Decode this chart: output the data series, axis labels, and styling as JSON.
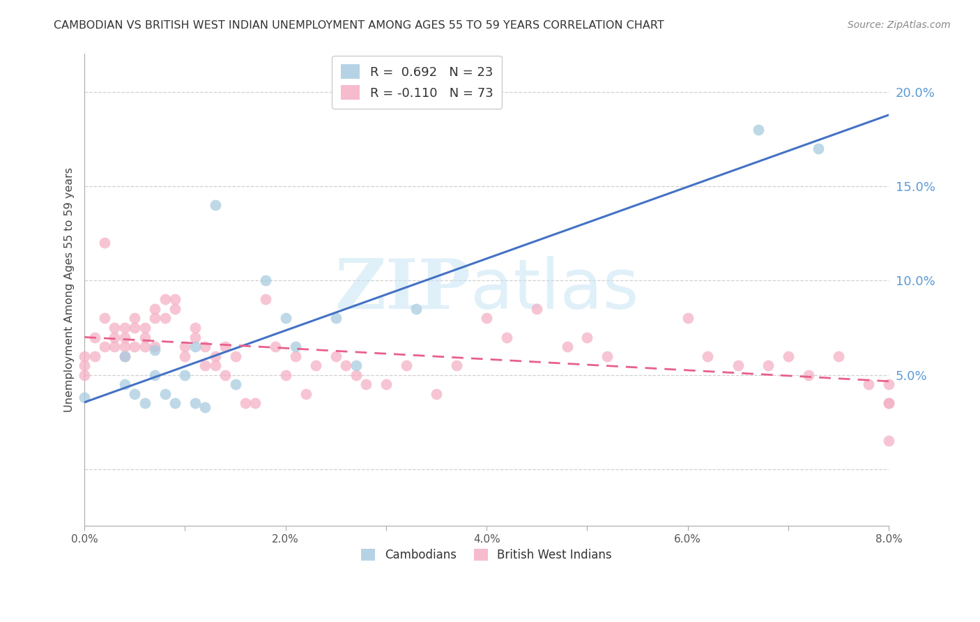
{
  "title": "CAMBODIAN VS BRITISH WEST INDIAN UNEMPLOYMENT AMONG AGES 55 TO 59 YEARS CORRELATION CHART",
  "source": "Source: ZipAtlas.com",
  "ylabel": "Unemployment Among Ages 55 to 59 years",
  "legend_line1_r": "R =  0.692",
  "legend_line1_n": "N = 23",
  "legend_line2_r": "R = -0.110",
  "legend_line2_n": "N = 73",
  "xlim": [
    0.0,
    0.08
  ],
  "ylim": [
    -0.03,
    0.22
  ],
  "yticks": [
    0.0,
    0.05,
    0.1,
    0.15,
    0.2
  ],
  "ytick_labels": [
    "",
    "5.0%",
    "10.0%",
    "15.0%",
    "20.0%"
  ],
  "xticks": [
    0.0,
    0.01,
    0.02,
    0.03,
    0.04,
    0.05,
    0.06,
    0.07,
    0.08
  ],
  "xtick_labels": [
    "0.0%",
    "",
    "2.0%",
    "",
    "4.0%",
    "",
    "6.0%",
    "",
    "8.0%"
  ],
  "blue_scatter": "#a8cce0",
  "pink_scatter": "#f5b0c5",
  "line_blue": "#4472c4",
  "line_pink": "#e8608a",
  "ytick_color": "#5b9bd5",
  "xtick_color": "#555555",
  "grid_color": "#d0d0d0",
  "watermark_color": "#c8e4f5",
  "cambodian_x": [
    0.0,
    0.004,
    0.004,
    0.005,
    0.006,
    0.007,
    0.007,
    0.008,
    0.009,
    0.01,
    0.011,
    0.011,
    0.012,
    0.013,
    0.015,
    0.018,
    0.02,
    0.021,
    0.025,
    0.027,
    0.033,
    0.067,
    0.073
  ],
  "cambodian_y": [
    0.038,
    0.045,
    0.06,
    0.04,
    0.035,
    0.063,
    0.05,
    0.04,
    0.035,
    0.05,
    0.035,
    0.065,
    0.033,
    0.14,
    0.045,
    0.1,
    0.08,
    0.065,
    0.08,
    0.055,
    0.085,
    0.18,
    0.17
  ],
  "bwi_x": [
    0.0,
    0.0,
    0.0,
    0.001,
    0.001,
    0.002,
    0.002,
    0.002,
    0.003,
    0.003,
    0.003,
    0.004,
    0.004,
    0.004,
    0.004,
    0.005,
    0.005,
    0.005,
    0.006,
    0.006,
    0.006,
    0.007,
    0.007,
    0.007,
    0.008,
    0.008,
    0.009,
    0.009,
    0.01,
    0.01,
    0.011,
    0.011,
    0.012,
    0.012,
    0.013,
    0.013,
    0.014,
    0.014,
    0.015,
    0.016,
    0.017,
    0.018,
    0.019,
    0.02,
    0.021,
    0.022,
    0.023,
    0.025,
    0.026,
    0.027,
    0.028,
    0.03,
    0.032,
    0.035,
    0.037,
    0.04,
    0.042,
    0.045,
    0.048,
    0.05,
    0.052,
    0.06,
    0.062,
    0.065,
    0.068,
    0.07,
    0.072,
    0.075,
    0.078,
    0.08,
    0.08,
    0.08,
    0.08
  ],
  "bwi_y": [
    0.06,
    0.055,
    0.05,
    0.07,
    0.06,
    0.12,
    0.08,
    0.065,
    0.075,
    0.07,
    0.065,
    0.075,
    0.07,
    0.065,
    0.06,
    0.08,
    0.075,
    0.065,
    0.075,
    0.07,
    0.065,
    0.085,
    0.08,
    0.065,
    0.09,
    0.08,
    0.09,
    0.085,
    0.065,
    0.06,
    0.075,
    0.07,
    0.065,
    0.055,
    0.06,
    0.055,
    0.065,
    0.05,
    0.06,
    0.035,
    0.035,
    0.09,
    0.065,
    0.05,
    0.06,
    0.04,
    0.055,
    0.06,
    0.055,
    0.05,
    0.045,
    0.045,
    0.055,
    0.04,
    0.055,
    0.08,
    0.07,
    0.085,
    0.065,
    0.07,
    0.06,
    0.08,
    0.06,
    0.055,
    0.055,
    0.06,
    0.05,
    0.06,
    0.045,
    0.045,
    0.035,
    0.015,
    0.035
  ],
  "scatter_size": 130
}
